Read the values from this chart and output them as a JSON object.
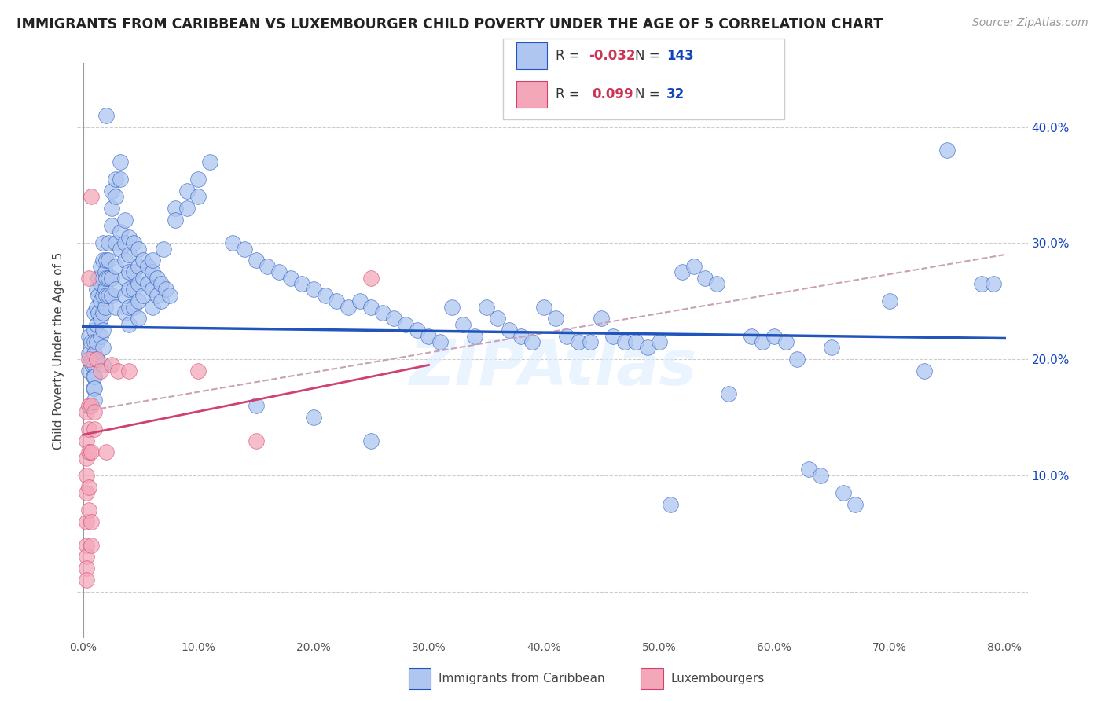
{
  "title": "IMMIGRANTS FROM CARIBBEAN VS LUXEMBOURGER CHILD POVERTY UNDER THE AGE OF 5 CORRELATION CHART",
  "source": "Source: ZipAtlas.com",
  "ylabel": "Child Poverty Under the Age of 5",
  "yticks": [
    0.0,
    0.1,
    0.2,
    0.3,
    0.4
  ],
  "ytick_labels": [
    "",
    "10.0%",
    "20.0%",
    "30.0%",
    "40.0%"
  ],
  "xticks": [
    0.0,
    0.1,
    0.2,
    0.3,
    0.4,
    0.5,
    0.6,
    0.7,
    0.8
  ],
  "xlim": [
    -0.005,
    0.82
  ],
  "ylim": [
    -0.04,
    0.455
  ],
  "blue_scatter": [
    [
      0.005,
      0.22
    ],
    [
      0.005,
      0.205
    ],
    [
      0.005,
      0.19
    ],
    [
      0.007,
      0.215
    ],
    [
      0.008,
      0.2
    ],
    [
      0.008,
      0.195
    ],
    [
      0.009,
      0.185
    ],
    [
      0.009,
      0.175
    ],
    [
      0.01,
      0.24
    ],
    [
      0.01,
      0.225
    ],
    [
      0.01,
      0.215
    ],
    [
      0.01,
      0.205
    ],
    [
      0.01,
      0.195
    ],
    [
      0.01,
      0.185
    ],
    [
      0.01,
      0.175
    ],
    [
      0.01,
      0.165
    ],
    [
      0.012,
      0.26
    ],
    [
      0.012,
      0.245
    ],
    [
      0.012,
      0.23
    ],
    [
      0.012,
      0.215
    ],
    [
      0.012,
      0.2
    ],
    [
      0.013,
      0.27
    ],
    [
      0.013,
      0.255
    ],
    [
      0.013,
      0.24
    ],
    [
      0.015,
      0.28
    ],
    [
      0.015,
      0.265
    ],
    [
      0.015,
      0.25
    ],
    [
      0.015,
      0.235
    ],
    [
      0.015,
      0.22
    ],
    [
      0.017,
      0.3
    ],
    [
      0.017,
      0.285
    ],
    [
      0.017,
      0.27
    ],
    [
      0.017,
      0.255
    ],
    [
      0.017,
      0.24
    ],
    [
      0.017,
      0.225
    ],
    [
      0.017,
      0.21
    ],
    [
      0.017,
      0.195
    ],
    [
      0.019,
      0.275
    ],
    [
      0.019,
      0.26
    ],
    [
      0.019,
      0.245
    ],
    [
      0.02,
      0.285
    ],
    [
      0.02,
      0.27
    ],
    [
      0.02,
      0.255
    ],
    [
      0.022,
      0.3
    ],
    [
      0.022,
      0.285
    ],
    [
      0.022,
      0.27
    ],
    [
      0.022,
      0.255
    ],
    [
      0.025,
      0.345
    ],
    [
      0.025,
      0.33
    ],
    [
      0.025,
      0.315
    ],
    [
      0.025,
      0.27
    ],
    [
      0.025,
      0.255
    ],
    [
      0.028,
      0.355
    ],
    [
      0.028,
      0.34
    ],
    [
      0.028,
      0.3
    ],
    [
      0.028,
      0.28
    ],
    [
      0.028,
      0.26
    ],
    [
      0.028,
      0.245
    ],
    [
      0.032,
      0.37
    ],
    [
      0.032,
      0.355
    ],
    [
      0.032,
      0.31
    ],
    [
      0.032,
      0.295
    ],
    [
      0.036,
      0.32
    ],
    [
      0.036,
      0.3
    ],
    [
      0.036,
      0.285
    ],
    [
      0.036,
      0.27
    ],
    [
      0.036,
      0.255
    ],
    [
      0.036,
      0.24
    ],
    [
      0.04,
      0.305
    ],
    [
      0.04,
      0.29
    ],
    [
      0.04,
      0.275
    ],
    [
      0.04,
      0.26
    ],
    [
      0.04,
      0.245
    ],
    [
      0.04,
      0.23
    ],
    [
      0.044,
      0.3
    ],
    [
      0.044,
      0.275
    ],
    [
      0.044,
      0.26
    ],
    [
      0.044,
      0.245
    ],
    [
      0.048,
      0.295
    ],
    [
      0.048,
      0.28
    ],
    [
      0.048,
      0.265
    ],
    [
      0.048,
      0.25
    ],
    [
      0.048,
      0.235
    ],
    [
      0.052,
      0.285
    ],
    [
      0.052,
      0.27
    ],
    [
      0.052,
      0.255
    ],
    [
      0.056,
      0.28
    ],
    [
      0.056,
      0.265
    ],
    [
      0.06,
      0.275
    ],
    [
      0.06,
      0.26
    ],
    [
      0.06,
      0.245
    ],
    [
      0.064,
      0.27
    ],
    [
      0.064,
      0.255
    ],
    [
      0.068,
      0.265
    ],
    [
      0.068,
      0.25
    ],
    [
      0.072,
      0.26
    ],
    [
      0.075,
      0.255
    ],
    [
      0.02,
      0.41
    ],
    [
      0.08,
      0.33
    ],
    [
      0.08,
      0.32
    ],
    [
      0.09,
      0.345
    ],
    [
      0.09,
      0.33
    ],
    [
      0.1,
      0.355
    ],
    [
      0.1,
      0.34
    ],
    [
      0.11,
      0.37
    ],
    [
      0.06,
      0.285
    ],
    [
      0.07,
      0.295
    ],
    [
      0.13,
      0.3
    ],
    [
      0.14,
      0.295
    ],
    [
      0.15,
      0.285
    ],
    [
      0.16,
      0.28
    ],
    [
      0.17,
      0.275
    ],
    [
      0.18,
      0.27
    ],
    [
      0.19,
      0.265
    ],
    [
      0.2,
      0.26
    ],
    [
      0.21,
      0.255
    ],
    [
      0.22,
      0.25
    ],
    [
      0.23,
      0.245
    ],
    [
      0.24,
      0.25
    ],
    [
      0.25,
      0.245
    ],
    [
      0.26,
      0.24
    ],
    [
      0.27,
      0.235
    ],
    [
      0.28,
      0.23
    ],
    [
      0.29,
      0.225
    ],
    [
      0.3,
      0.22
    ],
    [
      0.31,
      0.215
    ],
    [
      0.32,
      0.245
    ],
    [
      0.33,
      0.23
    ],
    [
      0.34,
      0.22
    ],
    [
      0.35,
      0.245
    ],
    [
      0.36,
      0.235
    ],
    [
      0.37,
      0.225
    ],
    [
      0.38,
      0.22
    ],
    [
      0.39,
      0.215
    ],
    [
      0.4,
      0.245
    ],
    [
      0.41,
      0.235
    ],
    [
      0.42,
      0.22
    ],
    [
      0.43,
      0.215
    ],
    [
      0.44,
      0.215
    ],
    [
      0.45,
      0.235
    ],
    [
      0.46,
      0.22
    ],
    [
      0.47,
      0.215
    ],
    [
      0.48,
      0.215
    ],
    [
      0.49,
      0.21
    ],
    [
      0.5,
      0.215
    ],
    [
      0.15,
      0.16
    ],
    [
      0.2,
      0.15
    ],
    [
      0.25,
      0.13
    ],
    [
      0.51,
      0.075
    ],
    [
      0.56,
      0.17
    ],
    [
      0.52,
      0.275
    ],
    [
      0.53,
      0.28
    ],
    [
      0.54,
      0.27
    ],
    [
      0.55,
      0.265
    ],
    [
      0.58,
      0.22
    ],
    [
      0.59,
      0.215
    ],
    [
      0.6,
      0.22
    ],
    [
      0.61,
      0.215
    ],
    [
      0.62,
      0.2
    ],
    [
      0.63,
      0.105
    ],
    [
      0.64,
      0.1
    ],
    [
      0.65,
      0.21
    ],
    [
      0.66,
      0.085
    ],
    [
      0.67,
      0.075
    ],
    [
      0.7,
      0.25
    ],
    [
      0.73,
      0.19
    ],
    [
      0.75,
      0.38
    ],
    [
      0.78,
      0.265
    ],
    [
      0.79,
      0.265
    ]
  ],
  "pink_scatter": [
    [
      0.003,
      0.155
    ],
    [
      0.003,
      0.13
    ],
    [
      0.003,
      0.115
    ],
    [
      0.003,
      0.1
    ],
    [
      0.003,
      0.085
    ],
    [
      0.003,
      0.06
    ],
    [
      0.003,
      0.04
    ],
    [
      0.003,
      0.03
    ],
    [
      0.003,
      0.02
    ],
    [
      0.003,
      0.01
    ],
    [
      0.005,
      0.27
    ],
    [
      0.005,
      0.2
    ],
    [
      0.005,
      0.16
    ],
    [
      0.005,
      0.14
    ],
    [
      0.005,
      0.12
    ],
    [
      0.005,
      0.09
    ],
    [
      0.005,
      0.07
    ],
    [
      0.007,
      0.34
    ],
    [
      0.007,
      0.16
    ],
    [
      0.007,
      0.12
    ],
    [
      0.007,
      0.06
    ],
    [
      0.007,
      0.04
    ],
    [
      0.01,
      0.155
    ],
    [
      0.01,
      0.14
    ],
    [
      0.012,
      0.2
    ],
    [
      0.015,
      0.19
    ],
    [
      0.02,
      0.12
    ],
    [
      0.025,
      0.195
    ],
    [
      0.03,
      0.19
    ],
    [
      0.04,
      0.19
    ],
    [
      0.1,
      0.19
    ],
    [
      0.15,
      0.13
    ],
    [
      0.25,
      0.27
    ]
  ],
  "blue_line": {
    "x0": 0.0,
    "y0": 0.228,
    "x1": 0.8,
    "y1": 0.218
  },
  "pink_line": {
    "x0": 0.0,
    "y0": 0.135,
    "x1": 0.3,
    "y1": 0.195
  },
  "dashed_line": {
    "x0": 0.0,
    "y0": 0.155,
    "x1": 0.8,
    "y1": 0.29
  },
  "watermark": "ZIPAtlas",
  "blue_color": "#aec6f0",
  "pink_color": "#f4a7b9",
  "blue_line_color": "#2255bb",
  "pink_line_color": "#d04070",
  "dashed_line_color": "#c8a0b8",
  "title_fontsize": 12.5,
  "source_fontsize": 10,
  "legend_R_color": "#cc3355",
  "legend_N_color": "#1144bb"
}
